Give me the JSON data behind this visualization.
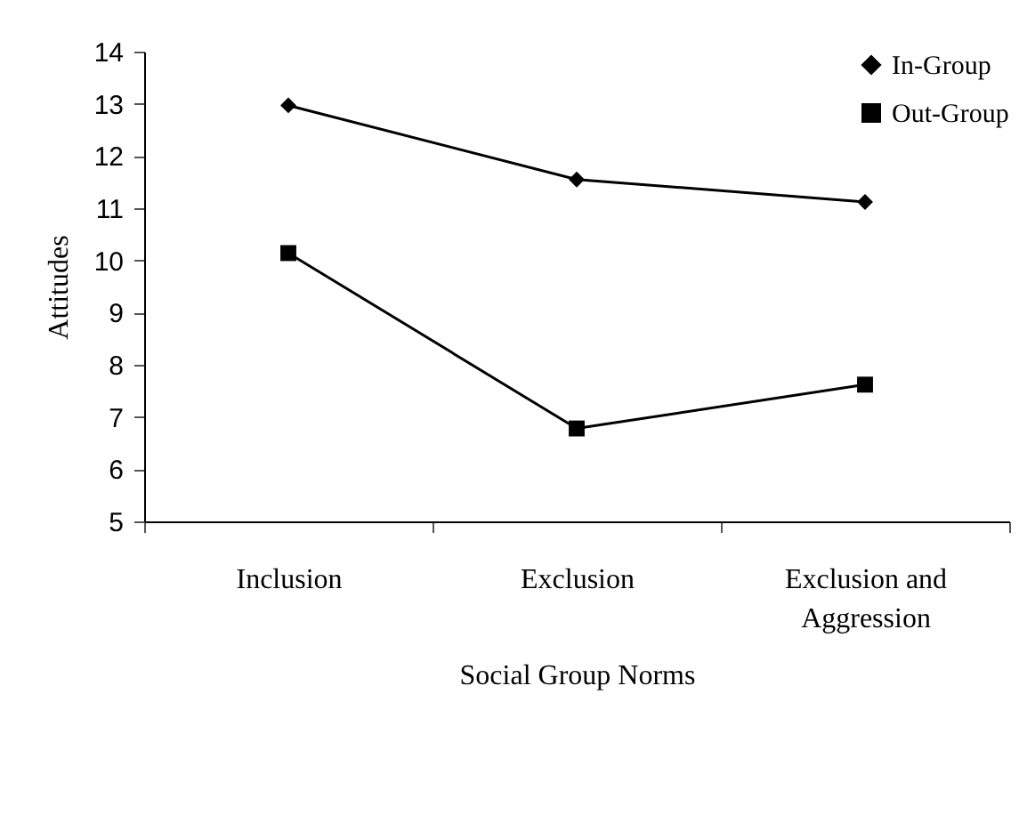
{
  "chart_data": {
    "type": "line",
    "xlabel": "Social Group Norms",
    "ylabel": "Attitudes",
    "categories": [
      "Inclusion",
      "Exclusion",
      "Exclusion and Aggression"
    ],
    "series": [
      {
        "name": "In-Group",
        "color": "#000000",
        "marker": "diamond",
        "values": [
          12.97,
          11.55,
          11.12
        ]
      },
      {
        "name": "Out-Group",
        "color": "#000000",
        "marker": "square",
        "values": [
          10.14,
          6.78,
          7.62
        ]
      }
    ],
    "ylim": [
      5,
      14
    ],
    "yticks": [
      5,
      6,
      7,
      8,
      9,
      10,
      11,
      12,
      13,
      14
    ],
    "grid": false,
    "legend": "top right"
  }
}
